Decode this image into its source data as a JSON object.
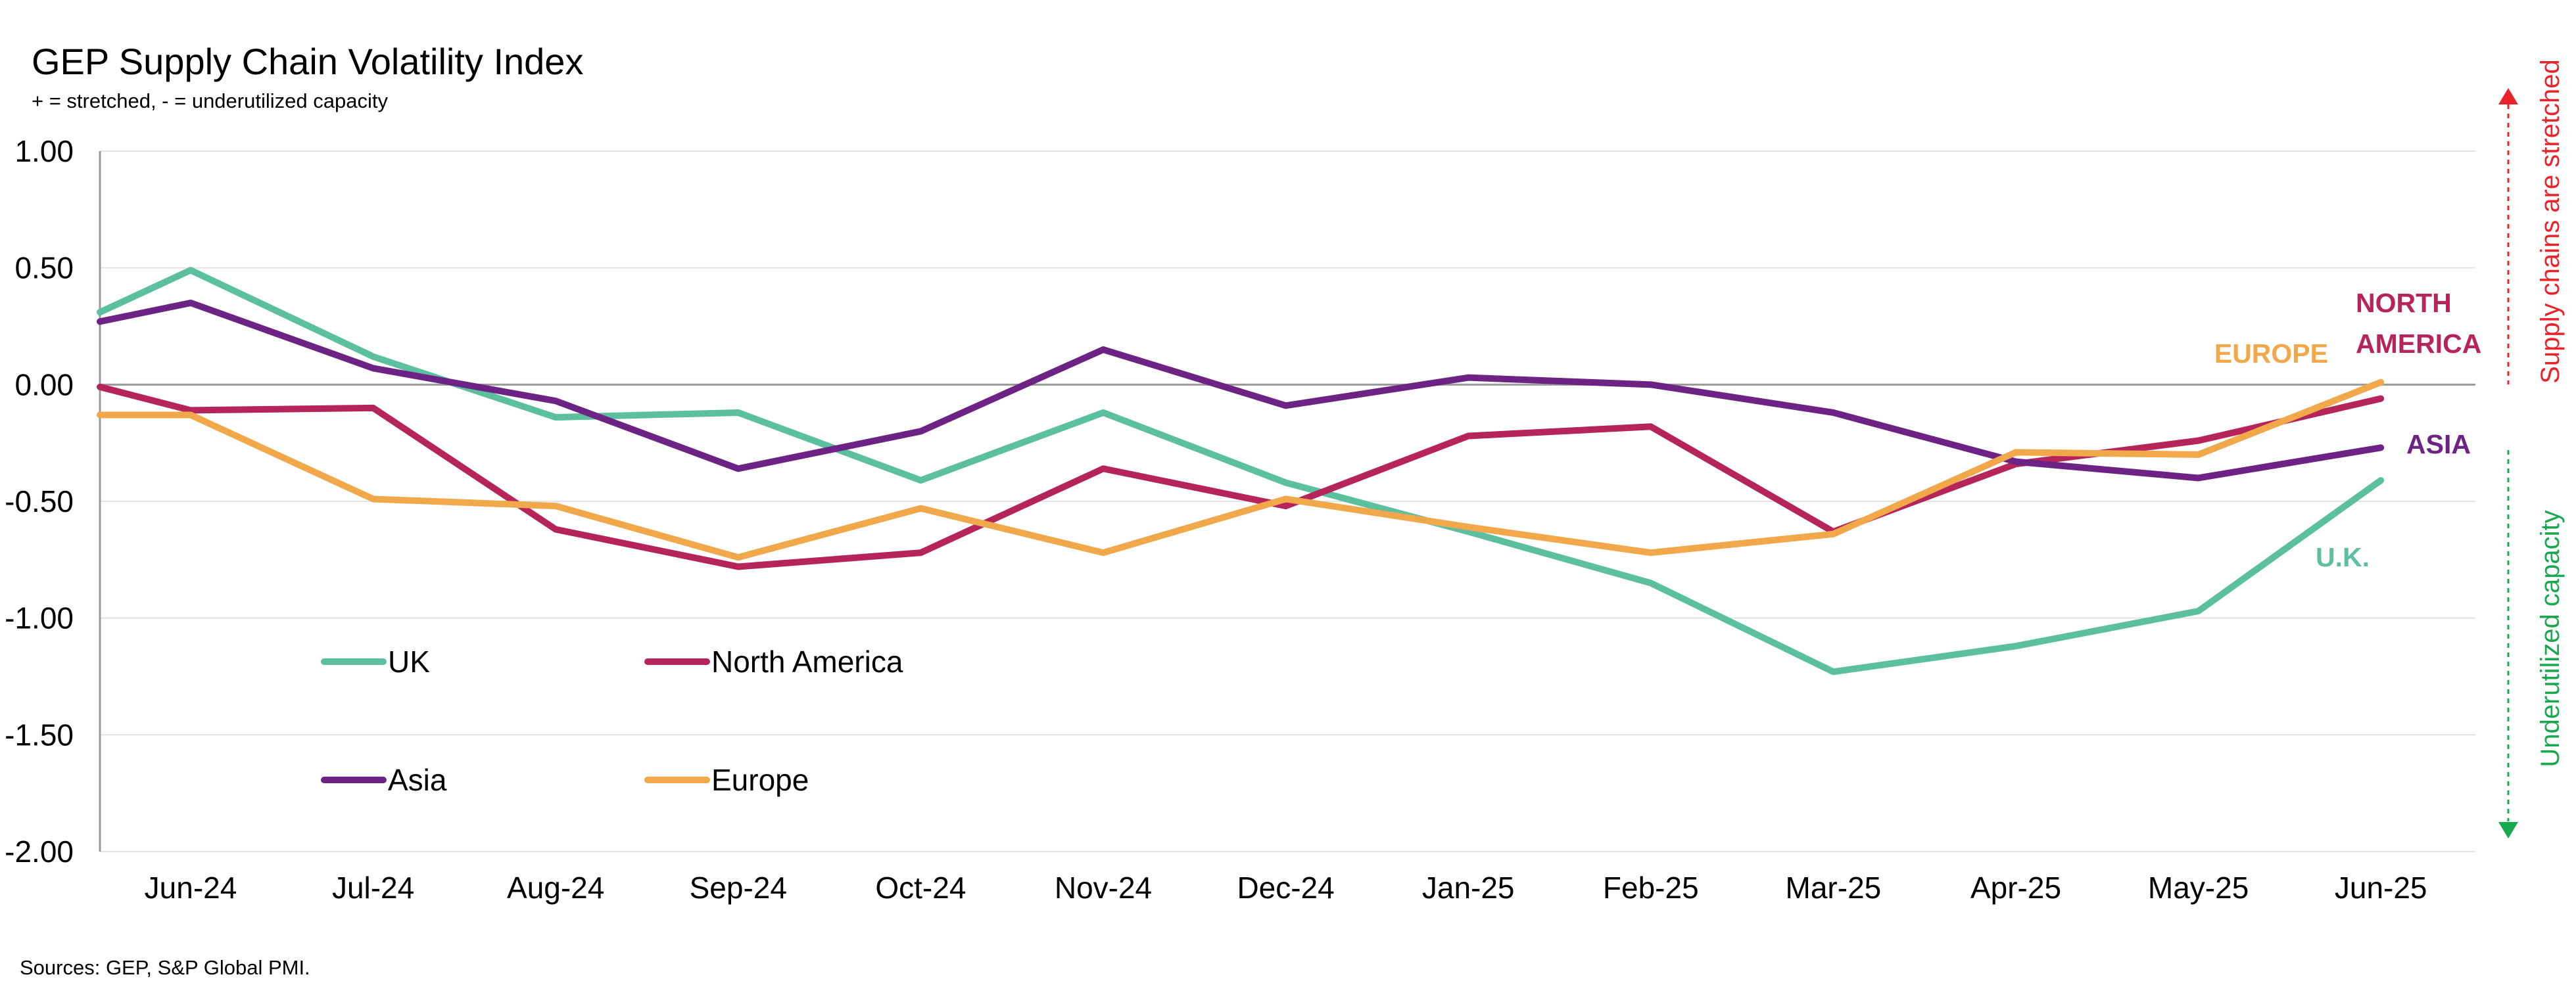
{
  "title": "GEP Supply Chain Volatility Index",
  "subtitle": "+ = stretched, - = underutilized capacity",
  "source": "Sources: GEP, S&P Global PMI.",
  "side_labels": {
    "top": "Supply chains are stretched",
    "bottom": "Underutilized capacity",
    "top_color": "#e8232a",
    "bottom_color": "#1aa84f"
  },
  "chart_data": {
    "type": "line",
    "title": "GEP Supply Chain Volatility Index",
    "subtitle": "+ = stretched, - = underutilized capacity",
    "categories": [
      "Jun-24",
      "Jul-24",
      "Aug-24",
      "Sep-24",
      "Oct-24",
      "Nov-24",
      "Dec-24",
      "Jan-25",
      "Feb-25",
      "Mar-25",
      "Apr-25",
      "May-25",
      "Jun-25"
    ],
    "ylim": [
      -2.0,
      1.0
    ],
    "yticks": [
      "1.00",
      "0.50",
      "0.00",
      "-0.50",
      "-1.00",
      "-1.50",
      "-2.00"
    ],
    "ytick_values": [
      1.0,
      0.5,
      0.0,
      -0.5,
      -1.0,
      -1.5,
      -2.0
    ],
    "grid": true,
    "legend_placement": "bottom-left",
    "series": [
      {
        "name": "UK",
        "color": "#5bbfa0",
        "end_label": "U.K.",
        "start": 0.31,
        "values": [
          0.49,
          0.12,
          -0.14,
          -0.12,
          -0.41,
          -0.12,
          -0.42,
          -0.63,
          -0.85,
          -1.23,
          -1.12,
          -0.97,
          -0.41
        ]
      },
      {
        "name": "North America",
        "color": "#b5245a",
        "end_label": "NORTH AMERICA",
        "start": -0.01,
        "values": [
          -0.11,
          -0.1,
          -0.62,
          -0.78,
          -0.72,
          -0.36,
          -0.52,
          -0.22,
          -0.18,
          -0.63,
          -0.34,
          -0.24,
          -0.06
        ]
      },
      {
        "name": "Asia",
        "color": "#6d2383",
        "end_label": "ASIA",
        "start": 0.27,
        "values": [
          0.35,
          0.07,
          -0.07,
          -0.36,
          -0.2,
          0.15,
          -0.09,
          0.03,
          0.0,
          -0.12,
          -0.33,
          -0.4,
          -0.27
        ]
      },
      {
        "name": "Europe",
        "color": "#f0a84a",
        "end_label": "EUROPE",
        "start": -0.13,
        "values": [
          -0.13,
          -0.49,
          -0.52,
          -0.74,
          -0.53,
          -0.72,
          -0.49,
          -0.61,
          -0.72,
          -0.64,
          -0.29,
          -0.3,
          0.01
        ]
      }
    ]
  }
}
